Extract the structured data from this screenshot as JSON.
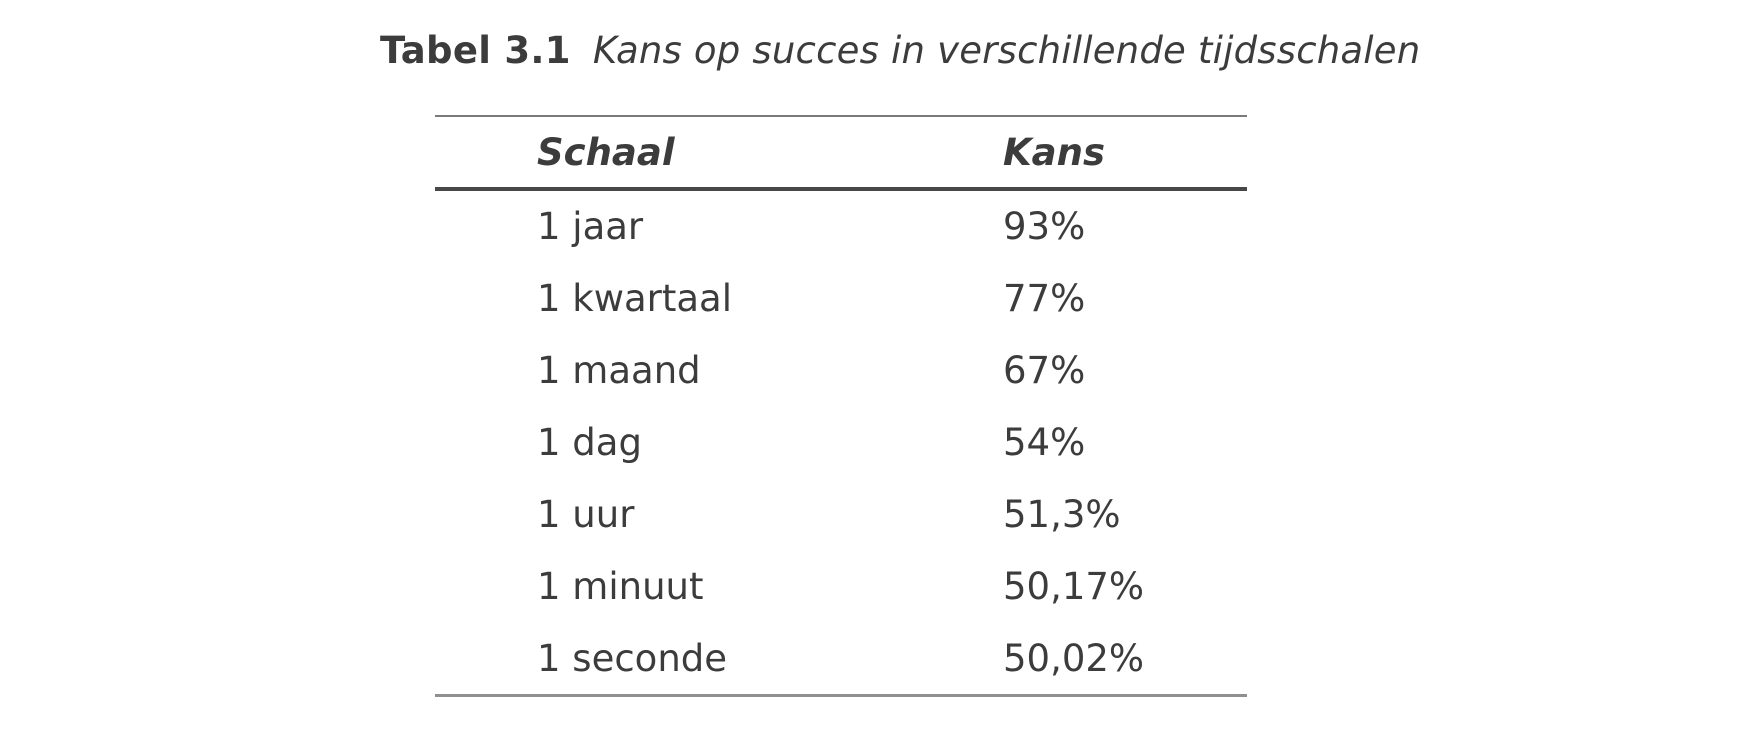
{
  "title": {
    "label": "Tabel 3.1",
    "caption": "Kans op succes in verschillende tijdsschalen"
  },
  "table": {
    "columns": [
      {
        "label": "Schaal"
      },
      {
        "label": "Kans"
      }
    ],
    "rows": [
      {
        "schaal": "1 jaar",
        "kans": "93%"
      },
      {
        "schaal": "1 kwartaal",
        "kans": "77%"
      },
      {
        "schaal": "1 maand",
        "kans": "67%"
      },
      {
        "schaal": "1 dag",
        "kans": "54%"
      },
      {
        "schaal": "1 uur",
        "kans": "51,3%"
      },
      {
        "schaal": "1 minuut",
        "kans": "50,17%"
      },
      {
        "schaal": "1 seconde",
        "kans": "50,02%"
      }
    ]
  },
  "chart_data": {
    "type": "table",
    "title": "Tabel 3.1 Kans op succes in verschillende tijdsschalen",
    "columns": [
      "Schaal",
      "Kans"
    ],
    "rows": [
      [
        "1 jaar",
        "93%"
      ],
      [
        "1 kwartaal",
        "77%"
      ],
      [
        "1 maand",
        "67%"
      ],
      [
        "1 dag",
        "54%"
      ],
      [
        "1 uur",
        "51,3%"
      ],
      [
        "1 minuut",
        "50,17%"
      ],
      [
        "1 seconde",
        "50,02%"
      ]
    ]
  },
  "colors": {
    "text": "#3c3c3c",
    "rule_thin": "#7a7a7a",
    "rule_thick": "#474747",
    "rule_bottom": "#8f8f8f",
    "background": "#ffffff"
  }
}
